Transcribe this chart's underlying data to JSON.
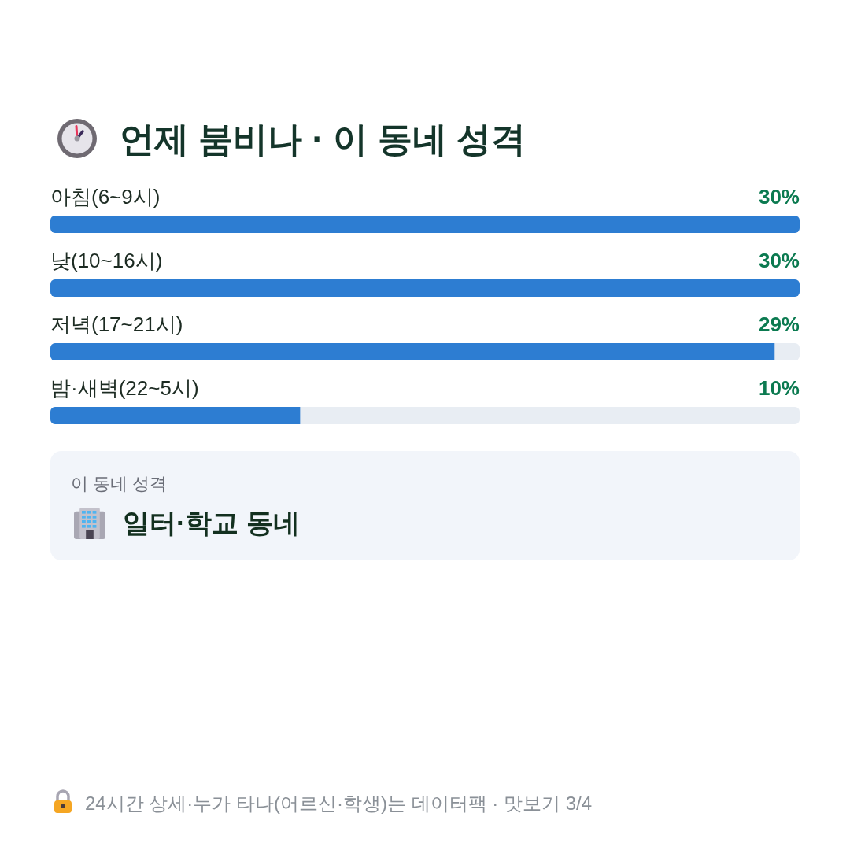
{
  "chart_data": [
    {
      "type": "bar",
      "orientation": "horizontal",
      "title": "언제 붐비나 · 이 동네 성격",
      "categories": [
        "아침(6~9시)",
        "낮(10~16시)",
        "저녁(17~21시)",
        "밤·새벽(22~5시)"
      ],
      "values": [
        30,
        30,
        29,
        10
      ],
      "value_labels": [
        "30%",
        "30%",
        "29%",
        "10%"
      ],
      "color": "#2d7dd2"
    },
    {
      "type": "other",
      "title": "이 동네 성격",
      "subtitle": "일터·학교 동네",
      "annotations": [
        "24시간 상세·누가 타나(어르신·학생)는 데이터팩 · 맛보기 3/4"
      ]
    }
  ]
}
